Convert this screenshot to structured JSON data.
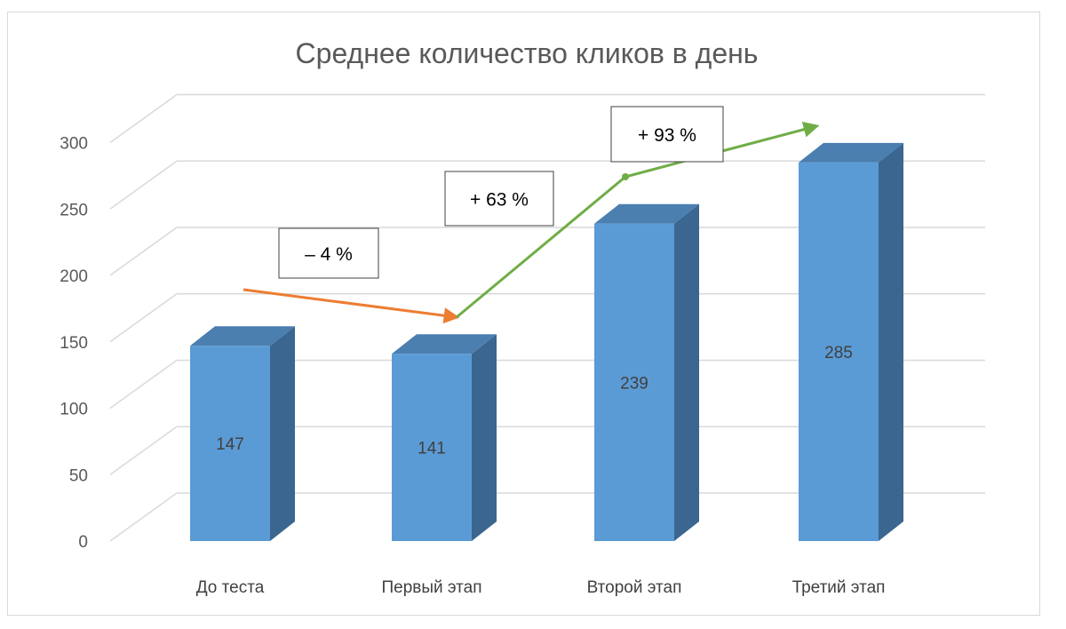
{
  "chart_data": {
    "type": "bar",
    "style": "3d-column",
    "title": "Среднее количество кликов в день",
    "categories": [
      "До теста",
      "Первый этап",
      "Второй этап",
      "Третий этап"
    ],
    "values": [
      147,
      141,
      239,
      285
    ],
    "data_labels": [
      "147",
      "141",
      "239",
      "285"
    ],
    "ylim": [
      0,
      300
    ],
    "yticks": [
      0,
      50,
      100,
      150,
      200,
      250,
      300
    ],
    "grid": true,
    "legend": "none",
    "colors": {
      "bar_front": "#5b9bd5",
      "bar_top": "#4a7fb0",
      "bar_side": "#3a6690",
      "grid": "#d9d9d9",
      "down_arrow": "#ed7d31",
      "up_arrow": "#70ad47"
    },
    "annotations": [
      {
        "text": "– 4 %",
        "kind": "down"
      },
      {
        "text": "+ 63 %",
        "kind": "up"
      },
      {
        "text": "+ 93 %",
        "kind": "up"
      }
    ]
  }
}
